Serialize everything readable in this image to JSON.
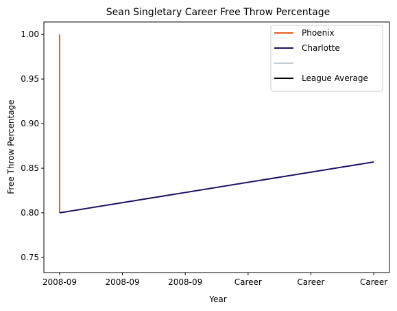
{
  "chart_data": {
    "type": "line",
    "title": "Sean Singletary Career Free Throw Percentage",
    "xlabel": "Year",
    "ylabel": "Free Throw Percentage",
    "x_tick_labels": [
      "2008-09",
      "2008-09",
      "2008-09",
      "Career",
      "Career",
      "Career"
    ],
    "x_range": [
      -0.125,
      2.625
    ],
    "ylim": [
      0.733,
      1.014
    ],
    "y_ticks": [
      0.75,
      0.8,
      0.85,
      0.9,
      0.95,
      1.0
    ],
    "grid": false,
    "legend_position": "top-right",
    "series": [
      {
        "name": "Phoenix",
        "color": "#E56020",
        "x": [
          0,
          0
        ],
        "y": [
          0.8,
          1.0
        ]
      },
      {
        "name": "Charlotte",
        "color": "#1D1160",
        "x": [
          0,
          2.5
        ],
        "y": [
          0.8,
          0.857
        ]
      },
      {
        "name": "",
        "color": "#C4CED4",
        "x": [],
        "y": []
      },
      {
        "name": "League Average",
        "color": "#000000",
        "x": [],
        "y": []
      }
    ]
  }
}
